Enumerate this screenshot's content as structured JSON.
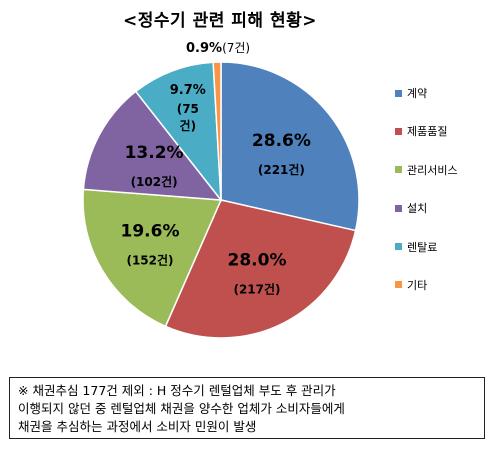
{
  "title": "<정수기 관련 피해 현황>",
  "chart_data": {
    "type": "pie",
    "title": "<정수기 관련 피해 현황>",
    "categories": [
      "계약",
      "제품품질",
      "관리서비스",
      "설치",
      "렌탈료",
      "기타"
    ],
    "values": [
      221,
      217,
      152,
      102,
      75,
      7
    ],
    "percent_labels": [
      "28.6%",
      "28.0%",
      "19.6%",
      "13.2%",
      "9.7%",
      "0.9%"
    ],
    "count_labels": [
      "(221건)",
      "(217건)",
      "(152건)",
      "(102건)",
      "(75건)",
      "(7건)"
    ],
    "colors": [
      "#4f81bd",
      "#c0504d",
      "#9bbb59",
      "#8064a2",
      "#4bacc6",
      "#f79646"
    ],
    "legend": "right"
  },
  "note": {
    "line1": "※ 채권추심 177건 제외 : H 정수기 렌털업체 부도 후 관리가",
    "line2": "이행되지 않던 중 렌털업체 채권을 양수한 업체가 소비자들에게",
    "line3": "채권을 추심하는 과정에서 소비자 민원이 발생"
  }
}
